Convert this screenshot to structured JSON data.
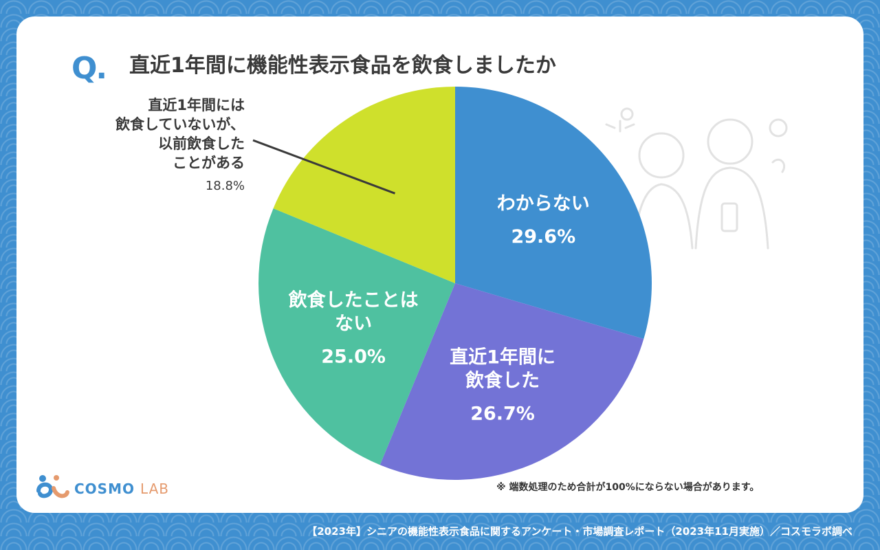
{
  "header": {
    "q_mark": "Q.",
    "title": "直近1年間に機能性表示食品を飲食しましたか"
  },
  "chart_data": {
    "type": "pie",
    "title": "直近1年間に機能性表示食品を飲食しましたか",
    "slices": [
      {
        "label_lines": [
          "わからない"
        ],
        "value": 29.6,
        "value_label": "29.6%",
        "color": "#3f8fd0"
      },
      {
        "label_lines": [
          "直近1年間に",
          "飲食した"
        ],
        "value": 26.7,
        "value_label": "26.7%",
        "color": "#7373d6"
      },
      {
        "label_lines": [
          "飲食したことは",
          "ない"
        ],
        "value": 25.0,
        "value_label": "25.0%",
        "color": "#4fc1a0"
      },
      {
        "label_lines": [
          "直近1年間には",
          "飲食していないが、",
          "以前飲食した",
          "ことがある"
        ],
        "value": 18.8,
        "value_label": "18.8%",
        "color": "#cfe02c"
      }
    ]
  },
  "note": "※ 端数処理のため合計が100%にならない場合があります。",
  "footer": "【2023年】シニアの機能性表示食品に関するアンケート・市場調査レポート（2023年11月実施）／コスモラボ調べ",
  "logo": {
    "word": "COSMO",
    "suffix": "LAB"
  },
  "colors": {
    "background": "#3f8fd0",
    "card": "#ffffff",
    "accent": "#3f8fd0",
    "text": "#3a3a3a"
  }
}
